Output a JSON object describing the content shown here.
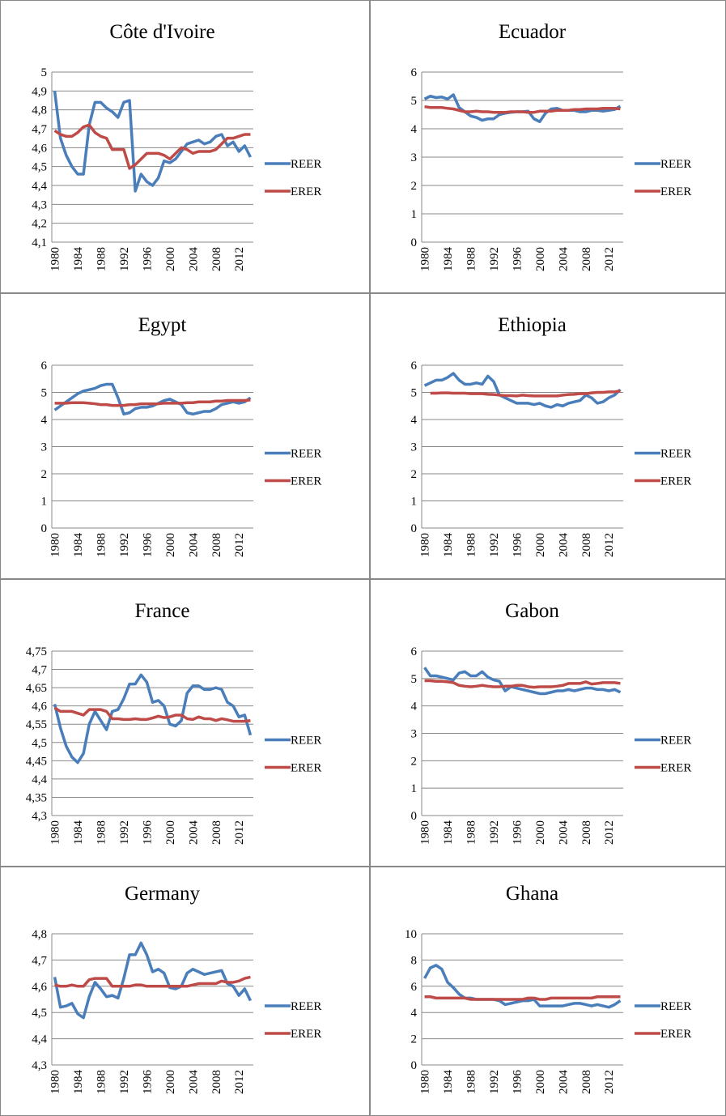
{
  "chart_data": [
    {
      "type": "line",
      "title": "Côte d'Ivoire",
      "categories": [
        "1980",
        null,
        null,
        null,
        "1984",
        null,
        null,
        null,
        "1988",
        null,
        null,
        null,
        "1992",
        null,
        null,
        null,
        "1996",
        null,
        null,
        null,
        "2000",
        null,
        null,
        null,
        "2004",
        null,
        null,
        null,
        "2008",
        null,
        null,
        null,
        "2012",
        null,
        null
      ],
      "ylim": [
        4.1,
        5
      ],
      "yticks": [
        {
          "value": 4.1,
          "label": "4,1"
        },
        {
          "value": 4.2,
          "label": "4,2"
        },
        {
          "value": 4.3,
          "label": "4,3"
        },
        {
          "value": 4.4,
          "label": "4,4"
        },
        {
          "value": 4.5,
          "label": "4,5"
        },
        {
          "value": 4.6,
          "label": "4,6"
        },
        {
          "value": 4.7,
          "label": "4,7"
        },
        {
          "value": 4.8,
          "label": "4,8"
        },
        {
          "value": 4.9,
          "label": "4,9"
        },
        5
      ],
      "series": [
        {
          "name": "REER",
          "color": "#4a7ebb",
          "values": [
            4.9,
            4.65,
            4.56,
            4.5,
            4.46,
            4.46,
            4.72,
            4.84,
            4.84,
            4.81,
            4.79,
            4.76,
            4.84,
            4.85,
            4.37,
            4.46,
            4.42,
            4.4,
            4.44,
            4.53,
            4.52,
            4.54,
            4.58,
            4.62,
            4.63,
            4.64,
            4.62,
            4.63,
            4.66,
            4.67,
            4.61,
            4.63,
            4.58,
            4.61,
            4.55
          ]
        },
        {
          "name": "ERER",
          "color": "#be4b48",
          "values": [
            4.69,
            4.67,
            4.66,
            4.66,
            4.68,
            4.71,
            4.72,
            4.68,
            4.66,
            4.65,
            4.59,
            4.59,
            4.59,
            4.49,
            4.51,
            4.54,
            4.57,
            4.57,
            4.57,
            4.56,
            4.54,
            4.57,
            4.6,
            4.59,
            4.57,
            4.58,
            4.58,
            4.58,
            4.59,
            4.62,
            4.65,
            4.65,
            4.66,
            4.67,
            4.67
          ]
        }
      ]
    },
    {
      "type": "line",
      "title": "Ecuador",
      "categories": [
        "1980",
        null,
        null,
        null,
        "1984",
        null,
        null,
        null,
        "1988",
        null,
        null,
        null,
        "1992",
        null,
        null,
        null,
        "1996",
        null,
        null,
        null,
        "2000",
        null,
        null,
        null,
        "2004",
        null,
        null,
        null,
        "2008",
        null,
        null,
        null,
        "2012",
        null,
        null
      ],
      "ylim": [
        0,
        6
      ],
      "yticks": [
        0,
        1,
        2,
        3,
        4,
        5,
        6
      ],
      "series": [
        {
          "name": "REER",
          "color": "#4a7ebb",
          "values": [
            5.05,
            5.15,
            5.1,
            5.12,
            5.05,
            5.2,
            4.75,
            4.6,
            4.45,
            4.4,
            4.3,
            4.35,
            4.35,
            4.5,
            4.55,
            4.58,
            4.6,
            4.6,
            4.62,
            4.35,
            4.25,
            4.55,
            4.7,
            4.72,
            4.65,
            4.65,
            4.65,
            4.6,
            4.6,
            4.65,
            4.65,
            4.62,
            4.65,
            4.68,
            4.8
          ]
        },
        {
          "name": "ERER",
          "color": "#be4b48",
          "values": [
            4.78,
            4.75,
            4.75,
            4.75,
            4.72,
            4.7,
            4.65,
            4.6,
            4.6,
            4.62,
            4.6,
            4.6,
            4.58,
            4.58,
            4.58,
            4.6,
            4.6,
            4.6,
            4.58,
            4.58,
            4.62,
            4.62,
            4.62,
            4.65,
            4.65,
            4.65,
            4.68,
            4.68,
            4.7,
            4.7,
            4.7,
            4.72,
            4.72,
            4.72,
            4.7
          ]
        }
      ]
    },
    {
      "type": "line",
      "title": "Egypt",
      "categories": [
        "1980",
        null,
        null,
        null,
        "1984",
        null,
        null,
        null,
        "1988",
        null,
        null,
        null,
        "1992",
        null,
        null,
        null,
        "1996",
        null,
        null,
        null,
        "2000",
        null,
        null,
        null,
        "2004",
        null,
        null,
        null,
        "2008",
        null,
        null,
        null,
        "2012",
        null,
        null
      ],
      "ylim": [
        0,
        6
      ],
      "yticks": [
        0,
        1,
        2,
        3,
        4,
        5,
        6
      ],
      "series": [
        {
          "name": "REER",
          "color": "#4a7ebb",
          "values": [
            4.35,
            4.5,
            4.65,
            4.8,
            4.95,
            5.05,
            5.1,
            5.15,
            5.25,
            5.3,
            5.3,
            4.8,
            4.2,
            4.25,
            4.4,
            4.45,
            4.45,
            4.5,
            4.6,
            4.7,
            4.75,
            4.65,
            4.55,
            4.25,
            4.2,
            4.25,
            4.3,
            4.3,
            4.4,
            4.55,
            4.6,
            4.65,
            4.6,
            4.65,
            4.8
          ]
        },
        {
          "name": "ERER",
          "color": "#be4b48",
          "values": [
            4.6,
            4.6,
            4.6,
            4.62,
            4.62,
            4.62,
            4.6,
            4.58,
            4.55,
            4.55,
            4.52,
            4.52,
            4.52,
            4.55,
            4.55,
            4.58,
            4.58,
            4.58,
            4.58,
            4.6,
            4.6,
            4.6,
            4.6,
            4.62,
            4.62,
            4.65,
            4.65,
            4.65,
            4.68,
            4.68,
            4.7,
            4.7,
            4.7,
            4.7,
            4.72
          ]
        }
      ]
    },
    {
      "type": "line",
      "title": "Ethiopia",
      "categories": [
        "1980",
        null,
        null,
        null,
        "1984",
        null,
        null,
        null,
        "1988",
        null,
        null,
        null,
        "1992",
        null,
        null,
        null,
        "1996",
        null,
        null,
        null,
        "2000",
        null,
        null,
        null,
        "2004",
        null,
        null,
        null,
        "2008",
        null,
        null,
        null,
        "2012",
        null,
        null
      ],
      "ylim": [
        0,
        6
      ],
      "yticks": [
        0,
        1,
        2,
        3,
        4,
        5,
        6
      ],
      "series": [
        {
          "name": "REER",
          "color": "#4a7ebb",
          "values": [
            5.25,
            5.35,
            5.45,
            5.45,
            5.55,
            5.7,
            5.45,
            5.3,
            5.3,
            5.35,
            5.3,
            5.6,
            5.4,
            4.9,
            4.8,
            4.7,
            4.6,
            4.6,
            4.6,
            4.55,
            4.6,
            4.5,
            4.45,
            4.55,
            4.5,
            4.6,
            4.65,
            4.7,
            4.9,
            4.8,
            4.6,
            4.65,
            4.8,
            4.9,
            5.1
          ]
        },
        {
          "name": "ERER",
          "color": "#be4b48",
          "values": [
            null,
            4.97,
            4.97,
            4.98,
            4.98,
            4.97,
            4.97,
            4.97,
            4.95,
            4.95,
            4.95,
            4.93,
            4.92,
            4.9,
            4.88,
            4.88,
            4.87,
            4.9,
            4.88,
            4.87,
            4.87,
            4.87,
            4.87,
            4.87,
            4.9,
            4.92,
            4.93,
            4.95,
            4.95,
            4.98,
            5.0,
            5.0,
            5.02,
            5.02,
            5.05
          ]
        }
      ]
    },
    {
      "type": "line",
      "title": "France",
      "categories": [
        "1980",
        null,
        null,
        null,
        "1984",
        null,
        null,
        null,
        "1988",
        null,
        null,
        null,
        "1992",
        null,
        null,
        null,
        "1996",
        null,
        null,
        null,
        "2000",
        null,
        null,
        null,
        "2004",
        null,
        null,
        null,
        "2008",
        null,
        null,
        null,
        "2012",
        null,
        null
      ],
      "ylim": [
        4.3,
        4.75
      ],
      "yticks": [
        {
          "value": 4.3,
          "label": "4,3"
        },
        {
          "value": 4.35,
          "label": "4,35"
        },
        {
          "value": 4.4,
          "label": "4,4"
        },
        {
          "value": 4.45,
          "label": "4,45"
        },
        {
          "value": 4.5,
          "label": "4,5"
        },
        {
          "value": 4.55,
          "label": "4,55"
        },
        {
          "value": 4.6,
          "label": "4,6"
        },
        {
          "value": 4.65,
          "label": "4,65"
        },
        {
          "value": 4.7,
          "label": "4,7"
        },
        {
          "value": 4.75,
          "label": "4,75"
        }
      ],
      "series": [
        {
          "name": "REER",
          "color": "#4a7ebb",
          "values": [
            4.605,
            4.54,
            4.49,
            4.46,
            4.445,
            4.47,
            4.55,
            4.585,
            4.56,
            4.535,
            4.585,
            4.59,
            4.62,
            4.66,
            4.66,
            4.685,
            4.665,
            4.61,
            4.615,
            4.6,
            4.55,
            4.545,
            4.56,
            4.635,
            4.655,
            4.655,
            4.645,
            4.645,
            4.65,
            4.645,
            4.61,
            4.6,
            4.57,
            4.575,
            4.52
          ]
        },
        {
          "name": "ERER",
          "color": "#be4b48",
          "values": [
            4.595,
            4.585,
            4.585,
            4.585,
            4.58,
            4.575,
            4.59,
            4.59,
            4.59,
            4.585,
            4.565,
            4.565,
            4.563,
            4.563,
            4.565,
            4.563,
            4.563,
            4.567,
            4.572,
            4.568,
            4.57,
            4.575,
            4.575,
            4.565,
            4.563,
            4.57,
            4.565,
            4.565,
            4.56,
            4.565,
            4.562,
            4.558,
            4.558,
            4.558,
            4.56
          ]
        }
      ]
    },
    {
      "type": "line",
      "title": "Gabon",
      "categories": [
        "1980",
        null,
        null,
        null,
        "1984",
        null,
        null,
        null,
        "1988",
        null,
        null,
        null,
        "1992",
        null,
        null,
        null,
        "1996",
        null,
        null,
        null,
        "2000",
        null,
        null,
        null,
        "2004",
        null,
        null,
        null,
        "2008",
        null,
        null,
        null,
        "2012",
        null,
        null
      ],
      "ylim": [
        0,
        6
      ],
      "yticks": [
        0,
        1,
        2,
        3,
        4,
        5,
        6
      ],
      "series": [
        {
          "name": "REER",
          "color": "#4a7ebb",
          "values": [
            5.4,
            5.1,
            5.1,
            5.05,
            5.0,
            4.95,
            5.2,
            5.25,
            5.1,
            5.1,
            5.25,
            5.05,
            4.95,
            4.9,
            4.55,
            4.7,
            4.65,
            4.6,
            4.55,
            4.5,
            4.45,
            4.45,
            4.5,
            4.55,
            4.55,
            4.6,
            4.55,
            4.6,
            4.65,
            4.65,
            4.6,
            4.6,
            4.55,
            4.6,
            4.5
          ]
        },
        {
          "name": "ERER",
          "color": "#be4b48",
          "values": [
            4.92,
            4.92,
            4.9,
            4.9,
            4.88,
            4.85,
            4.75,
            4.72,
            4.7,
            4.72,
            4.75,
            4.72,
            4.7,
            4.7,
            4.72,
            4.72,
            4.75,
            4.75,
            4.7,
            4.68,
            4.7,
            4.7,
            4.7,
            4.72,
            4.75,
            4.82,
            4.82,
            4.82,
            4.88,
            4.8,
            4.82,
            4.85,
            4.85,
            4.85,
            4.82
          ]
        }
      ]
    },
    {
      "type": "line",
      "title": "Germany",
      "categories": [
        "1980",
        null,
        null,
        null,
        "1984",
        null,
        null,
        null,
        "1988",
        null,
        null,
        null,
        "1992",
        null,
        null,
        null,
        "1996",
        null,
        null,
        null,
        "2000",
        null,
        null,
        null,
        "2004",
        null,
        null,
        null,
        "2008",
        null,
        null,
        null,
        "2012",
        null,
        null
      ],
      "ylim": [
        4.3,
        4.8
      ],
      "yticks": [
        {
          "value": 4.3,
          "label": "4,3"
        },
        {
          "value": 4.4,
          "label": "4,4"
        },
        {
          "value": 4.5,
          "label": "4,5"
        },
        {
          "value": 4.6,
          "label": "4,6"
        },
        {
          "value": 4.7,
          "label": "4,7"
        },
        {
          "value": 4.8,
          "label": "4,8"
        }
      ],
      "series": [
        {
          "name": "REER",
          "color": "#4a7ebb",
          "values": [
            4.635,
            4.52,
            4.525,
            4.535,
            4.495,
            4.48,
            4.56,
            4.615,
            4.59,
            4.56,
            4.565,
            4.555,
            4.63,
            4.72,
            4.72,
            4.765,
            4.72,
            4.655,
            4.665,
            4.65,
            4.595,
            4.59,
            4.6,
            4.65,
            4.665,
            4.655,
            4.645,
            4.65,
            4.655,
            4.66,
            4.61,
            4.6,
            4.565,
            4.59,
            4.545
          ]
        },
        {
          "name": "ERER",
          "color": "#be4b48",
          "values": [
            4.605,
            4.6,
            4.6,
            4.605,
            4.6,
            4.6,
            4.625,
            4.63,
            4.63,
            4.63,
            4.6,
            4.6,
            4.6,
            4.6,
            4.605,
            4.605,
            4.6,
            4.6,
            4.6,
            4.6,
            4.6,
            4.6,
            4.6,
            4.6,
            4.605,
            4.61,
            4.61,
            4.61,
            4.61,
            4.62,
            4.615,
            4.615,
            4.62,
            4.63,
            4.635
          ]
        }
      ]
    },
    {
      "type": "line",
      "title": "Ghana",
      "categories": [
        "1980",
        null,
        null,
        null,
        "1984",
        null,
        null,
        null,
        "1988",
        null,
        null,
        null,
        "1992",
        null,
        null,
        null,
        "1996",
        null,
        null,
        null,
        "2000",
        null,
        null,
        null,
        "2004",
        null,
        null,
        null,
        "2008",
        null,
        null,
        null,
        "2012",
        null,
        null
      ],
      "ylim": [
        0,
        10
      ],
      "yticks": [
        0,
        2,
        4,
        6,
        8,
        10
      ],
      "series": [
        {
          "name": "REER",
          "color": "#4a7ebb",
          "values": [
            6.6,
            7.4,
            7.6,
            7.3,
            6.3,
            5.9,
            5.4,
            5.1,
            5.1,
            5.0,
            5.0,
            5.0,
            5.0,
            4.9,
            4.6,
            4.7,
            4.8,
            4.9,
            4.9,
            5.0,
            4.5,
            4.5,
            4.5,
            4.5,
            4.5,
            4.6,
            4.7,
            4.7,
            4.6,
            4.5,
            4.6,
            4.5,
            4.4,
            4.6,
            4.9
          ]
        },
        {
          "name": "ERER",
          "color": "#be4b48",
          "values": [
            5.2,
            5.2,
            5.1,
            5.1,
            5.1,
            5.1,
            5.1,
            5.1,
            5.0,
            5.0,
            5.0,
            5.0,
            5.0,
            5.0,
            5.0,
            5.0,
            5.0,
            5.0,
            5.1,
            5.1,
            5.0,
            5.0,
            5.1,
            5.1,
            5.1,
            5.1,
            5.1,
            5.1,
            5.1,
            5.1,
            5.2,
            5.2,
            5.2,
            5.2,
            5.2
          ]
        }
      ]
    }
  ]
}
